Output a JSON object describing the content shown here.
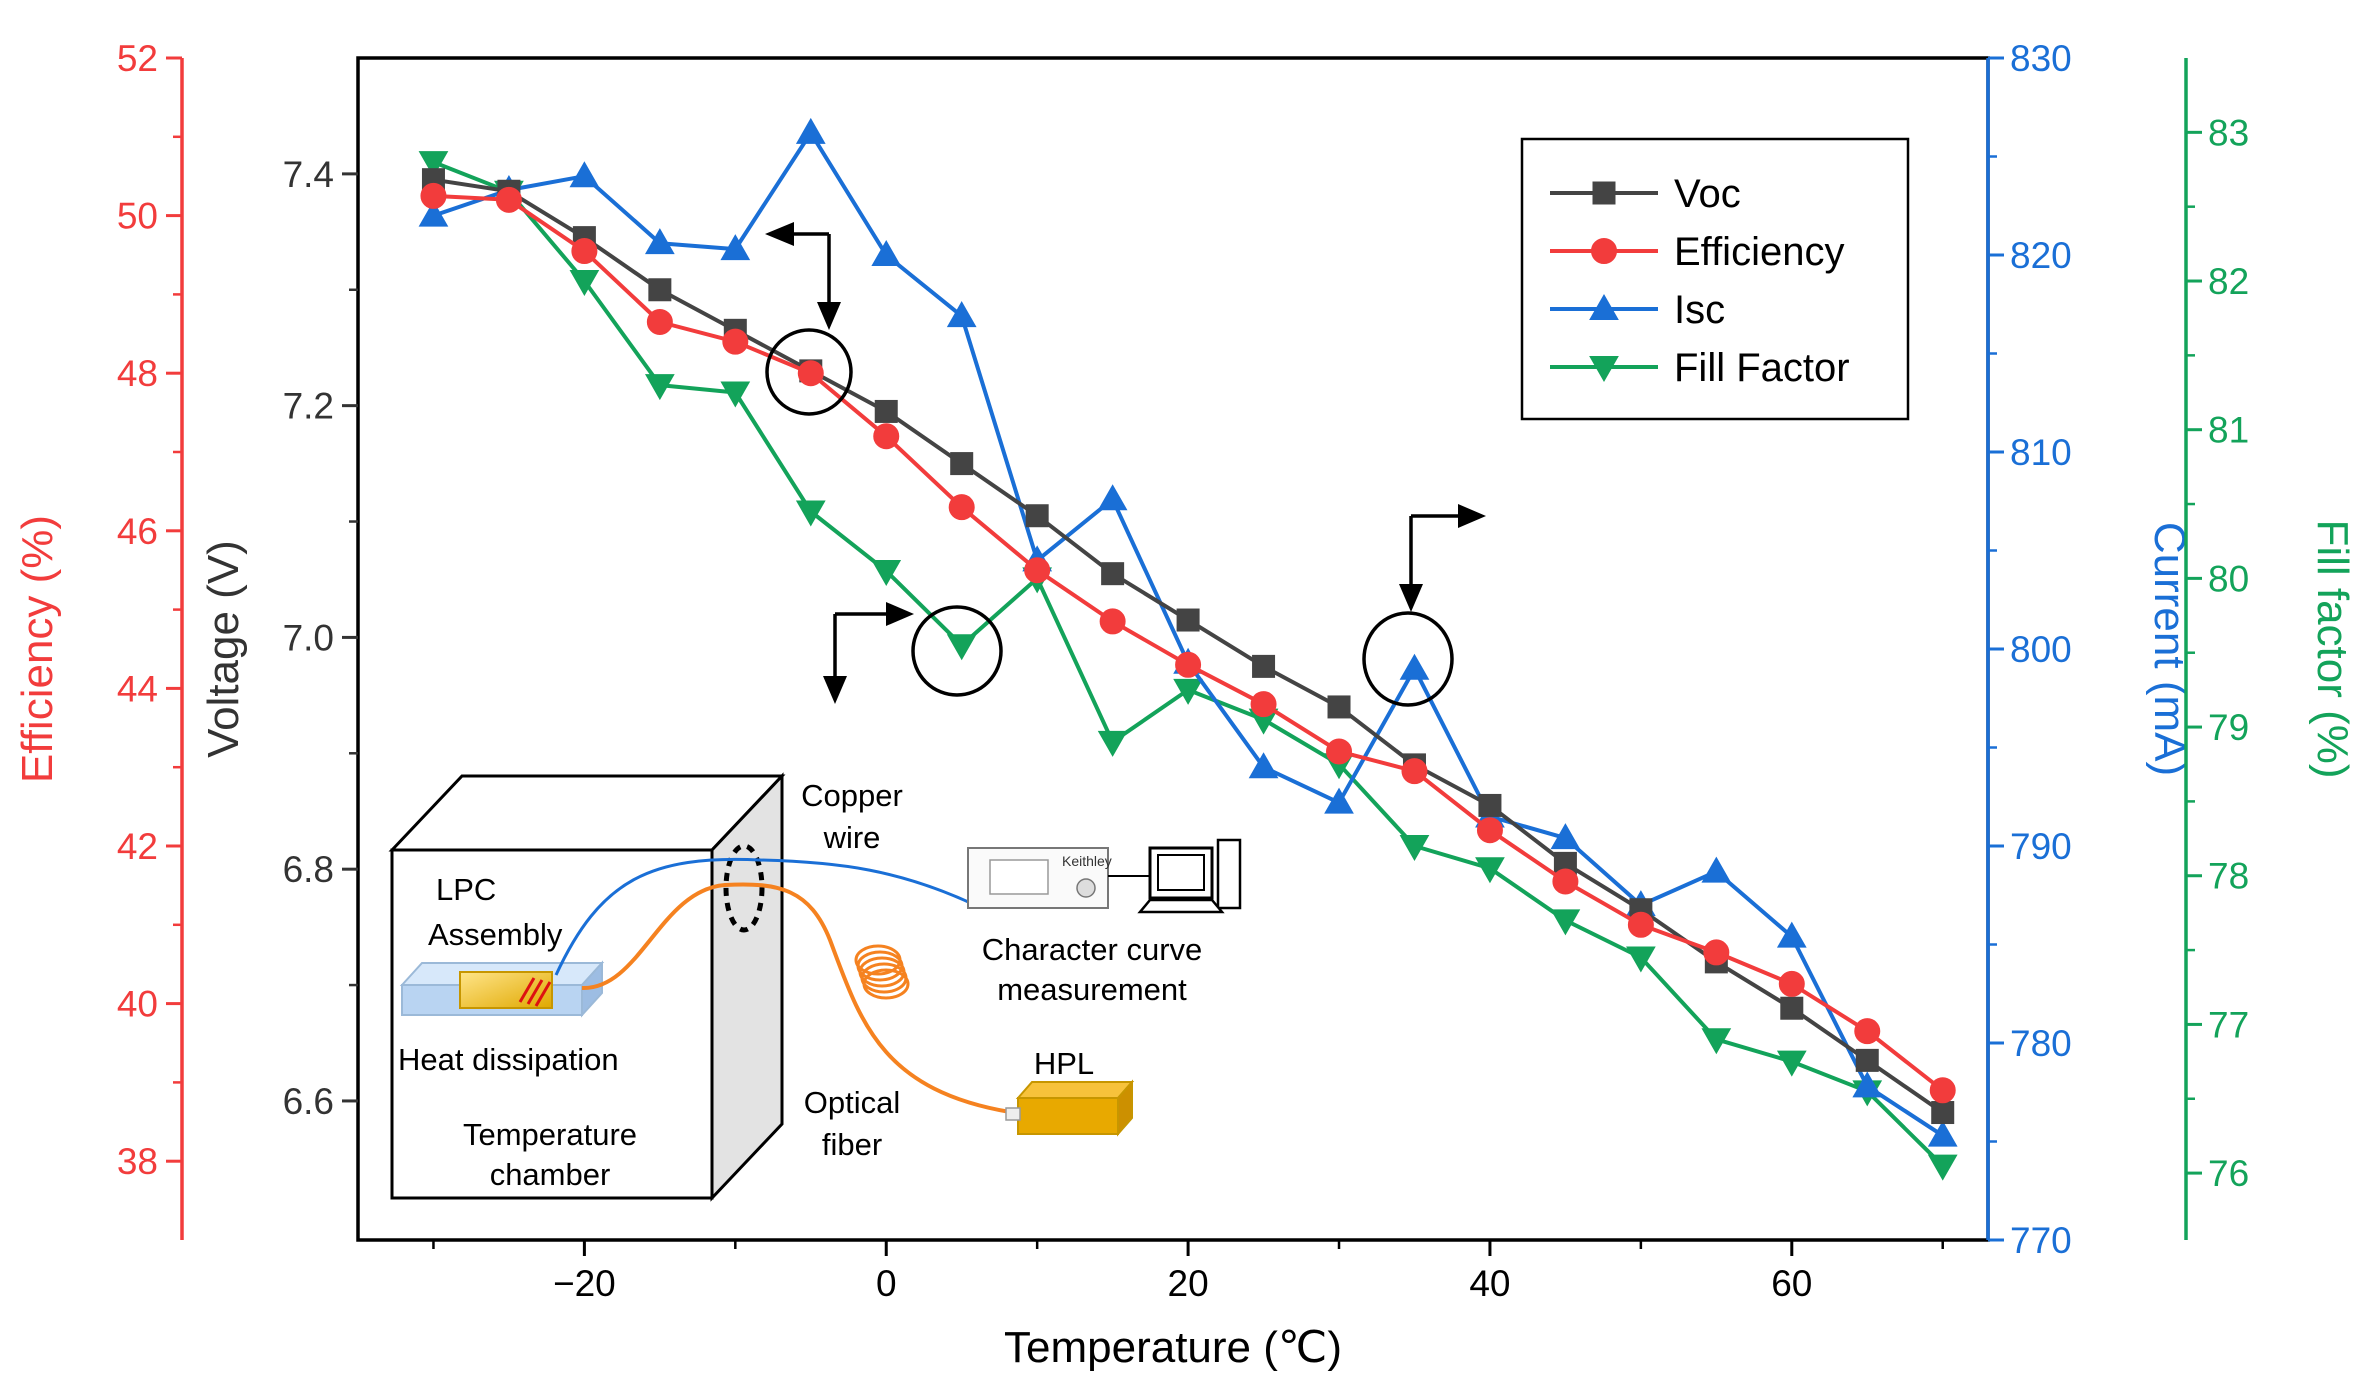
{
  "chart_data": {
    "type": "line",
    "xlabel": "Temperature (℃)",
    "xlim": [
      -35,
      73
    ],
    "xticks": [
      -20,
      0,
      20,
      40,
      60
    ],
    "x": [
      -30,
      -25,
      -20,
      -15,
      -10,
      -5,
      0,
      5,
      10,
      15,
      20,
      25,
      30,
      35,
      40,
      45,
      50,
      55,
      60,
      65,
      70
    ],
    "axes": [
      {
        "id": "voltage",
        "label": "Voltage (V)",
        "side": "left-inner",
        "color": "#333333",
        "lim": [
          6.48,
          7.5
        ],
        "ticks": [
          "6.6",
          "6.8",
          "7.0",
          "7.2",
          "7.4"
        ]
      },
      {
        "id": "efficiency",
        "label": "Efficiency (%)",
        "side": "left-outer",
        "color": "#f23c3c",
        "lim": [
          37,
          52
        ],
        "ticks": [
          "38",
          "40",
          "42",
          "44",
          "46",
          "48",
          "50",
          "52"
        ]
      },
      {
        "id": "current",
        "label": "Current (mA)",
        "side": "right-inner",
        "color": "#1a6fd6",
        "lim": [
          770,
          830
        ],
        "ticks": [
          "770",
          "780",
          "790",
          "800",
          "810",
          "820",
          "830"
        ]
      },
      {
        "id": "fill_factor",
        "label": "Fill factor (%)",
        "side": "right-outer",
        "color": "#13a35a",
        "lim": [
          75.55,
          83.5
        ],
        "ticks": [
          "76",
          "77",
          "78",
          "79",
          "80",
          "81",
          "82",
          "83"
        ]
      }
    ],
    "series": [
      {
        "name": "Voc",
        "axis": "voltage",
        "marker": "square",
        "color": "#444444",
        "values": [
          7.395,
          7.385,
          7.345,
          7.3,
          7.265,
          7.23,
          7.195,
          7.15,
          7.105,
          7.055,
          7.015,
          6.975,
          6.94,
          6.89,
          6.855,
          6.805,
          6.765,
          6.72,
          6.68,
          6.635,
          6.59
        ]
      },
      {
        "name": "Efficiency",
        "axis": "efficiency",
        "marker": "circle",
        "color": "#f23c3c",
        "values": [
          50.25,
          50.2,
          49.55,
          48.65,
          48.4,
          48.0,
          47.2,
          46.3,
          45.5,
          44.85,
          44.3,
          43.8,
          43.2,
          42.95,
          42.2,
          41.55,
          41.0,
          40.65,
          40.25,
          39.65,
          38.9
        ]
      },
      {
        "name": "Isc",
        "axis": "current",
        "marker": "triangle-up",
        "color": "#1a6fd6",
        "values": [
          822,
          823.3,
          824,
          820.6,
          820.3,
          826.2,
          820,
          816.9,
          804.5,
          807.6,
          799.3,
          794,
          792.2,
          799,
          791.5,
          790.4,
          787,
          788.7,
          785.4,
          777.8,
          775.3
        ]
      },
      {
        "name": "Fill Factor",
        "axis": "fill_factor",
        "marker": "triangle-down",
        "color": "#13a35a",
        "values": [
          82.8,
          82.6,
          82.0,
          81.3,
          81.25,
          80.45,
          80.05,
          79.55,
          80.0,
          78.9,
          79.25,
          79.05,
          78.75,
          78.2,
          78.05,
          77.7,
          77.45,
          76.9,
          76.75,
          76.55,
          76.05
        ]
      }
    ],
    "legend": {
      "position": "top-right",
      "entries": [
        "Voc",
        "Efficiency",
        "Isc",
        "Fill Factor"
      ]
    },
    "annotations": [
      "circled data points at -5, 5 and 35 ℃ with arrows indicating the corresponding axis"
    ]
  },
  "inset": {
    "copper_wire": [
      "Copper",
      "wire"
    ],
    "lpc_assembly": [
      "LPC",
      "Assembly"
    ],
    "heat_dissipation": "Heat dissipation",
    "temperature_chamber": [
      "Temperature",
      "chamber"
    ],
    "optical_fiber": [
      "Optical",
      "fiber"
    ],
    "keithley": "Keithley",
    "character_curve": [
      "Character curve",
      "measurement"
    ],
    "hpl": "HPL"
  }
}
